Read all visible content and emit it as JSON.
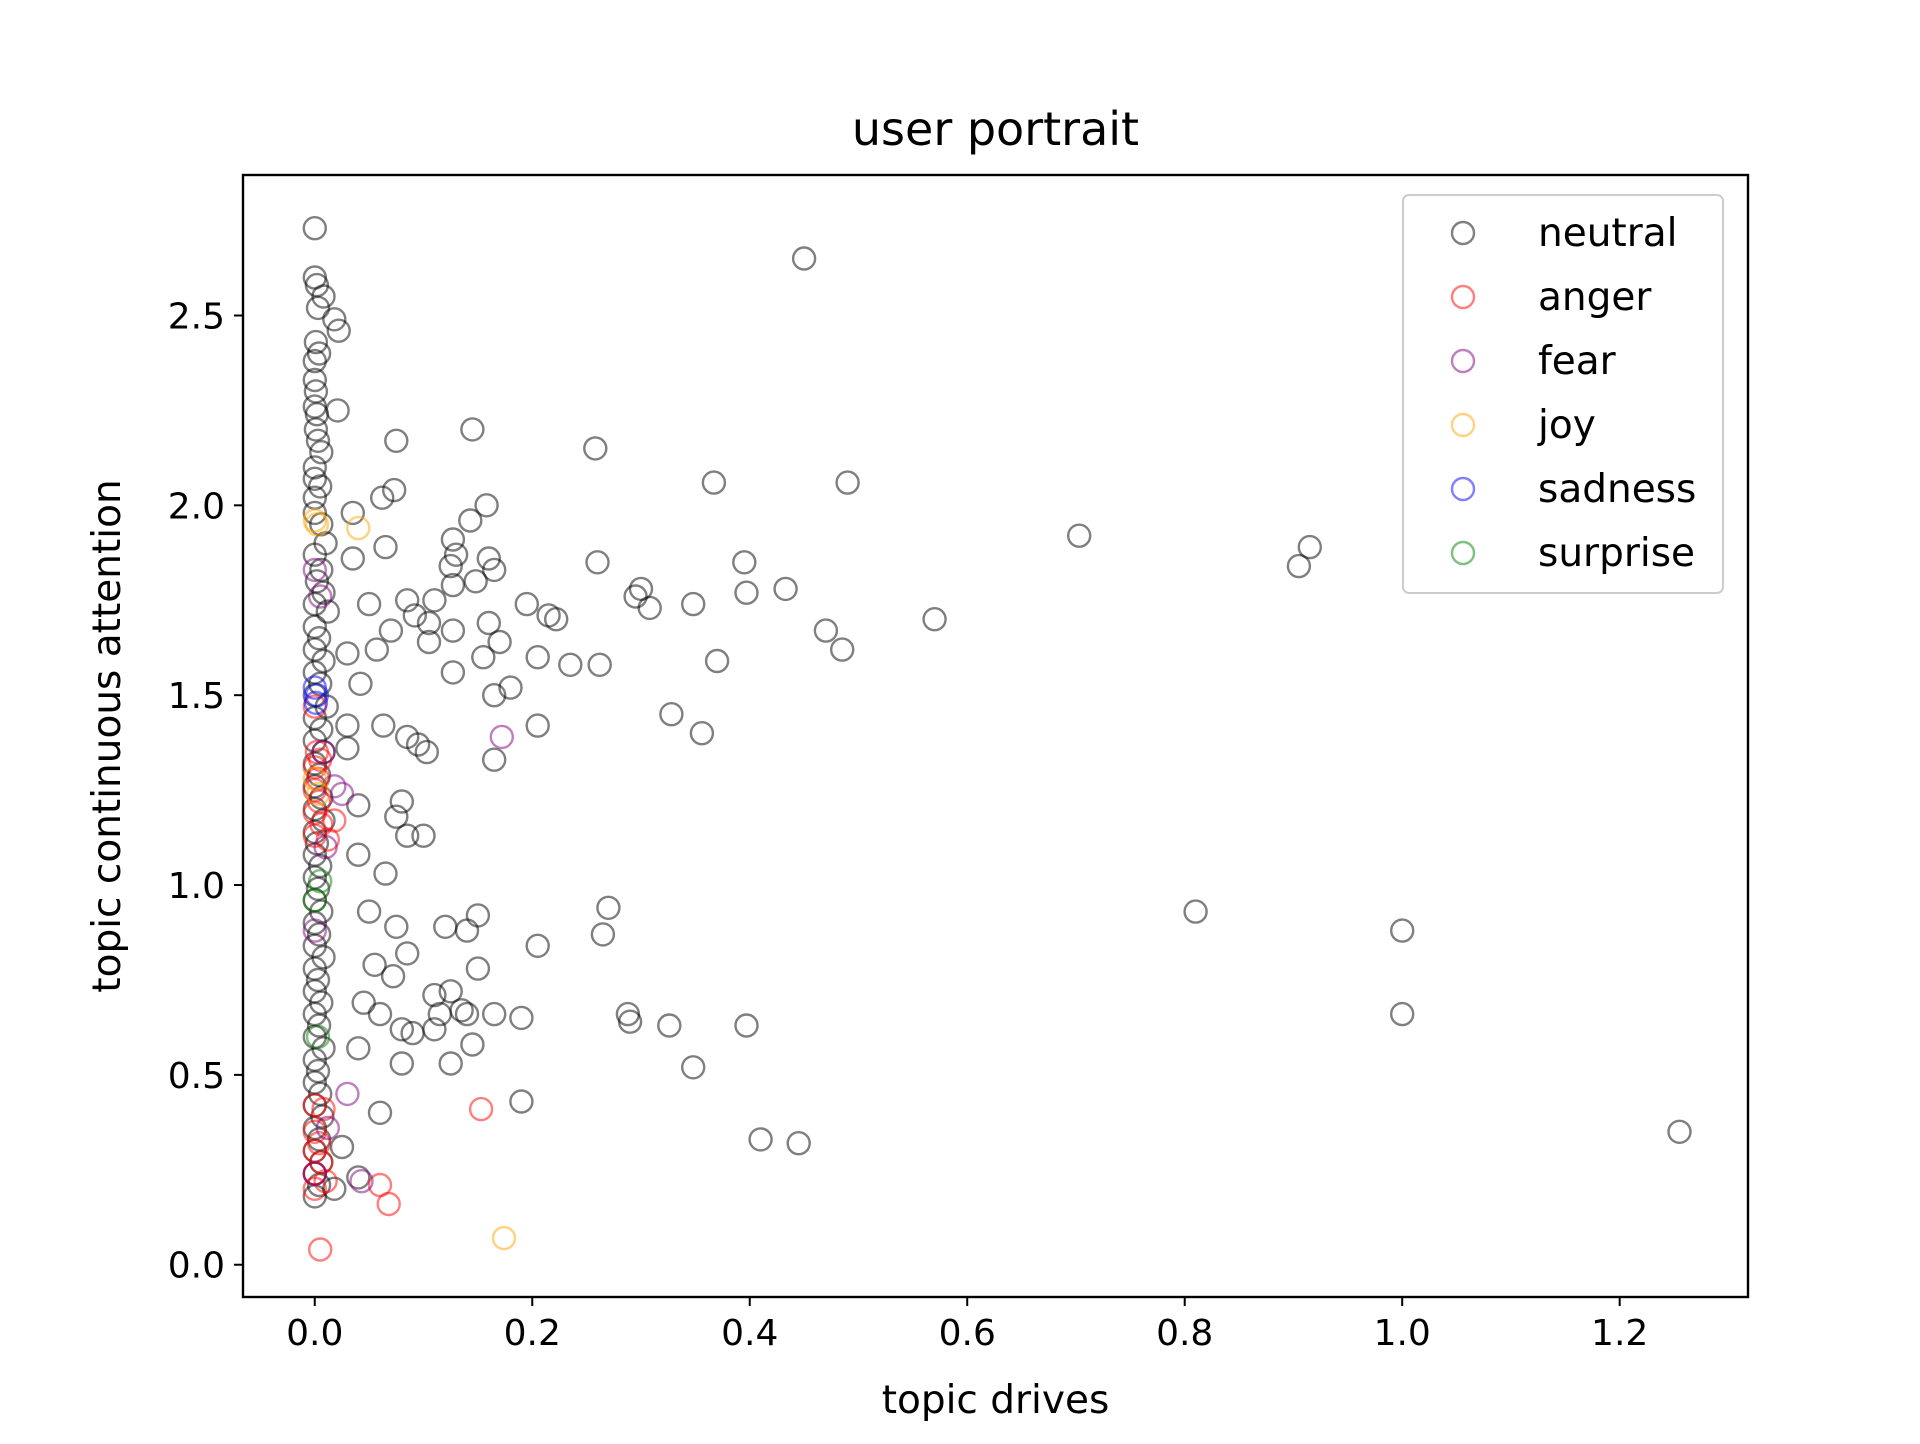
{
  "chart_data": {
    "type": "scatter",
    "title": "user portrait",
    "xlabel": "topic drives",
    "ylabel": "topic continuous attention",
    "xlim": [
      -0.066,
      1.318
    ],
    "ylim": [
      -0.085,
      2.87
    ],
    "xticks": [
      0.0,
      0.2,
      0.4,
      0.6,
      0.8,
      1.0,
      1.2
    ],
    "xtick_labels": [
      "0.0",
      "0.2",
      "0.4",
      "0.6",
      "0.8",
      "1.0",
      "1.2"
    ],
    "yticks": [
      0.0,
      0.5,
      1.0,
      1.5,
      2.0,
      2.5
    ],
    "ytick_labels": [
      "0.0",
      "0.5",
      "1.0",
      "1.5",
      "2.0",
      "2.5"
    ],
    "grid": false,
    "legend_position": "top-right",
    "marker": "hollow-circle",
    "marker_alpha": 0.5,
    "series": [
      {
        "name": "neutral",
        "color": "#000000",
        "points": [
          [
            0.0,
            2.73
          ],
          [
            0.0,
            2.6
          ],
          [
            0.002,
            2.58
          ],
          [
            0.008,
            2.55
          ],
          [
            0.003,
            2.52
          ],
          [
            0.018,
            2.49
          ],
          [
            0.022,
            2.46
          ],
          [
            0.001,
            2.43
          ],
          [
            0.004,
            2.4
          ],
          [
            0.0,
            2.38
          ],
          [
            0.0,
            2.33
          ],
          [
            0.001,
            2.3
          ],
          [
            0.0,
            2.26
          ],
          [
            0.002,
            2.24
          ],
          [
            0.021,
            2.25
          ],
          [
            0.001,
            2.2
          ],
          [
            0.003,
            2.17
          ],
          [
            0.006,
            2.14
          ],
          [
            0.0,
            2.1
          ],
          [
            0.0,
            2.07
          ],
          [
            0.005,
            2.05
          ],
          [
            0.0,
            2.02
          ],
          [
            0.0,
            1.98
          ],
          [
            0.006,
            1.95
          ],
          [
            0.01,
            1.9
          ],
          [
            0.0,
            1.87
          ],
          [
            0.006,
            1.83
          ],
          [
            0.002,
            1.8
          ],
          [
            0.008,
            1.77
          ],
          [
            0.0,
            1.74
          ],
          [
            0.012,
            1.72
          ],
          [
            0.0,
            1.68
          ],
          [
            0.004,
            1.65
          ],
          [
            0.0,
            1.62
          ],
          [
            0.008,
            1.59
          ],
          [
            0.0,
            1.56
          ],
          [
            0.005,
            1.53
          ],
          [
            0.0,
            1.5
          ],
          [
            0.011,
            1.47
          ],
          [
            0.0,
            1.44
          ],
          [
            0.006,
            1.41
          ],
          [
            0.0,
            1.38
          ],
          [
            0.008,
            1.35
          ],
          [
            0.0,
            1.32
          ],
          [
            0.004,
            1.29
          ],
          [
            0.0,
            1.26
          ],
          [
            0.006,
            1.23
          ],
          [
            0.0,
            1.2
          ],
          [
            0.008,
            1.17
          ],
          [
            0.0,
            1.14
          ],
          [
            0.002,
            1.11
          ],
          [
            0.0,
            1.08
          ],
          [
            0.005,
            1.05
          ],
          [
            0.0,
            1.02
          ],
          [
            0.003,
            0.99
          ],
          [
            0.0,
            0.96
          ],
          [
            0.006,
            0.93
          ],
          [
            0.0,
            0.9
          ],
          [
            0.004,
            0.87
          ],
          [
            0.0,
            0.84
          ],
          [
            0.008,
            0.81
          ],
          [
            0.0,
            0.78
          ],
          [
            0.003,
            0.75
          ],
          [
            0.0,
            0.72
          ],
          [
            0.006,
            0.69
          ],
          [
            0.0,
            0.66
          ],
          [
            0.004,
            0.63
          ],
          [
            0.0,
            0.6
          ],
          [
            0.008,
            0.57
          ],
          [
            0.0,
            0.54
          ],
          [
            0.003,
            0.51
          ],
          [
            0.0,
            0.48
          ],
          [
            0.005,
            0.45
          ],
          [
            0.0,
            0.42
          ],
          [
            0.007,
            0.39
          ],
          [
            0.0,
            0.36
          ],
          [
            0.004,
            0.33
          ],
          [
            0.0,
            0.3
          ],
          [
            0.006,
            0.27
          ],
          [
            0.0,
            0.24
          ],
          [
            0.004,
            0.21
          ],
          [
            0.0,
            0.18
          ],
          [
            0.075,
            2.17
          ],
          [
            0.035,
            1.98
          ],
          [
            0.062,
            2.02
          ],
          [
            0.073,
            2.04
          ],
          [
            0.035,
            1.86
          ],
          [
            0.065,
            1.89
          ],
          [
            0.05,
            1.74
          ],
          [
            0.057,
            1.62
          ],
          [
            0.07,
            1.67
          ],
          [
            0.085,
            1.75
          ],
          [
            0.092,
            1.71
          ],
          [
            0.03,
            1.61
          ],
          [
            0.042,
            1.53
          ],
          [
            0.03,
            1.42
          ],
          [
            0.063,
            1.42
          ],
          [
            0.085,
            1.39
          ],
          [
            0.095,
            1.37
          ],
          [
            0.103,
            1.35
          ],
          [
            0.03,
            1.36
          ],
          [
            0.04,
            1.21
          ],
          [
            0.08,
            1.22
          ],
          [
            0.075,
            1.18
          ],
          [
            0.085,
            1.13
          ],
          [
            0.1,
            1.13
          ],
          [
            0.04,
            1.08
          ],
          [
            0.065,
            1.03
          ],
          [
            0.05,
            0.93
          ],
          [
            0.075,
            0.89
          ],
          [
            0.055,
            0.79
          ],
          [
            0.072,
            0.76
          ],
          [
            0.085,
            0.82
          ],
          [
            0.045,
            0.69
          ],
          [
            0.06,
            0.66
          ],
          [
            0.08,
            0.62
          ],
          [
            0.09,
            0.61
          ],
          [
            0.08,
            0.53
          ],
          [
            0.04,
            0.57
          ],
          [
            0.06,
            0.4
          ],
          [
            0.025,
            0.31
          ],
          [
            0.04,
            0.23
          ],
          [
            0.018,
            0.2
          ],
          [
            0.145,
            2.2
          ],
          [
            0.158,
            2.0
          ],
          [
            0.143,
            1.96
          ],
          [
            0.127,
            1.91
          ],
          [
            0.13,
            1.87
          ],
          [
            0.125,
            1.84
          ],
          [
            0.127,
            1.79
          ],
          [
            0.16,
            1.86
          ],
          [
            0.165,
            1.83
          ],
          [
            0.148,
            1.8
          ],
          [
            0.11,
            1.75
          ],
          [
            0.105,
            1.69
          ],
          [
            0.127,
            1.67
          ],
          [
            0.105,
            1.64
          ],
          [
            0.127,
            1.56
          ],
          [
            0.155,
            1.6
          ],
          [
            0.16,
            1.69
          ],
          [
            0.17,
            1.64
          ],
          [
            0.165,
            1.5
          ],
          [
            0.18,
            1.52
          ],
          [
            0.165,
            1.33
          ],
          [
            0.12,
            0.89
          ],
          [
            0.14,
            0.88
          ],
          [
            0.15,
            0.92
          ],
          [
            0.11,
            0.71
          ],
          [
            0.125,
            0.72
          ],
          [
            0.115,
            0.66
          ],
          [
            0.135,
            0.67
          ],
          [
            0.145,
            0.58
          ],
          [
            0.14,
            0.66
          ],
          [
            0.11,
            0.62
          ],
          [
            0.125,
            0.53
          ],
          [
            0.15,
            0.78
          ],
          [
            0.165,
            0.66
          ],
          [
            0.19,
            0.65
          ],
          [
            0.19,
            0.43
          ],
          [
            0.205,
            0.84
          ],
          [
            0.195,
            1.74
          ],
          [
            0.215,
            1.71
          ],
          [
            0.222,
            1.7
          ],
          [
            0.205,
            1.6
          ],
          [
            0.235,
            1.58
          ],
          [
            0.205,
            1.42
          ],
          [
            0.258,
            2.15
          ],
          [
            0.26,
            1.85
          ],
          [
            0.262,
            1.58
          ],
          [
            0.27,
            0.94
          ],
          [
            0.265,
            0.87
          ],
          [
            0.288,
            0.66
          ],
          [
            0.29,
            0.64
          ],
          [
            0.295,
            1.76
          ],
          [
            0.3,
            1.78
          ],
          [
            0.308,
            1.73
          ],
          [
            0.326,
            0.63
          ],
          [
            0.328,
            1.45
          ],
          [
            0.348,
            1.74
          ],
          [
            0.356,
            1.4
          ],
          [
            0.348,
            0.52
          ],
          [
            0.367,
            2.06
          ],
          [
            0.37,
            1.59
          ],
          [
            0.395,
            1.85
          ],
          [
            0.397,
            1.77
          ],
          [
            0.397,
            0.63
          ],
          [
            0.41,
            0.33
          ],
          [
            0.433,
            1.78
          ],
          [
            0.445,
            0.32
          ],
          [
            0.45,
            2.65
          ],
          [
            0.47,
            1.67
          ],
          [
            0.485,
            1.62
          ],
          [
            0.49,
            2.06
          ],
          [
            0.57,
            1.7
          ],
          [
            0.703,
            1.92
          ],
          [
            0.81,
            0.93
          ],
          [
            0.905,
            1.84
          ],
          [
            0.915,
            1.89
          ],
          [
            1.0,
            0.88
          ],
          [
            1.0,
            0.66
          ],
          [
            1.255,
            0.35
          ]
        ]
      },
      {
        "name": "anger",
        "color": "#ff0000",
        "points": [
          [
            0.0,
            1.47
          ],
          [
            0.002,
            1.35
          ],
          [
            0.005,
            1.33
          ],
          [
            0.0,
            1.31
          ],
          [
            0.003,
            1.28
          ],
          [
            0.0,
            1.25
          ],
          [
            0.004,
            1.22
          ],
          [
            0.0,
            1.19
          ],
          [
            0.006,
            1.16
          ],
          [
            0.0,
            1.13
          ],
          [
            0.018,
            1.17
          ],
          [
            0.012,
            1.12
          ],
          [
            0.0,
            0.42
          ],
          [
            0.008,
            0.41
          ],
          [
            0.0,
            0.35
          ],
          [
            0.004,
            0.32
          ],
          [
            0.0,
            0.3
          ],
          [
            0.006,
            0.27
          ],
          [
            0.0,
            0.24
          ],
          [
            0.01,
            0.22
          ],
          [
            0.0,
            0.2
          ],
          [
            0.06,
            0.21
          ],
          [
            0.068,
            0.16
          ],
          [
            0.005,
            0.04
          ],
          [
            0.153,
            0.41
          ]
        ]
      },
      {
        "name": "fear",
        "color": "#800080",
        "points": [
          [
            0.0,
            1.83
          ],
          [
            0.005,
            1.76
          ],
          [
            0.008,
            1.35
          ],
          [
            0.018,
            1.26
          ],
          [
            0.025,
            1.24
          ],
          [
            0.01,
            1.1
          ],
          [
            0.0,
            0.88
          ],
          [
            0.03,
            0.45
          ],
          [
            0.012,
            0.36
          ],
          [
            0.0,
            0.24
          ],
          [
            0.043,
            0.22
          ],
          [
            0.172,
            1.39
          ]
        ]
      },
      {
        "name": "joy",
        "color": "#ffa500",
        "points": [
          [
            0.0,
            1.96
          ],
          [
            0.002,
            1.95
          ],
          [
            0.04,
            1.94
          ],
          [
            0.0,
            1.28
          ],
          [
            0.003,
            1.24
          ],
          [
            0.174,
            0.07
          ]
        ]
      },
      {
        "name": "sadness",
        "color": "#0000ff",
        "points": [
          [
            0.0,
            1.52
          ],
          [
            0.002,
            1.5
          ],
          [
            0.001,
            1.48
          ]
        ]
      },
      {
        "name": "surprise",
        "color": "#008000",
        "points": [
          [
            0.005,
            1.01
          ],
          [
            0.0,
            0.96
          ],
          [
            0.003,
            0.6
          ]
        ]
      }
    ]
  }
}
